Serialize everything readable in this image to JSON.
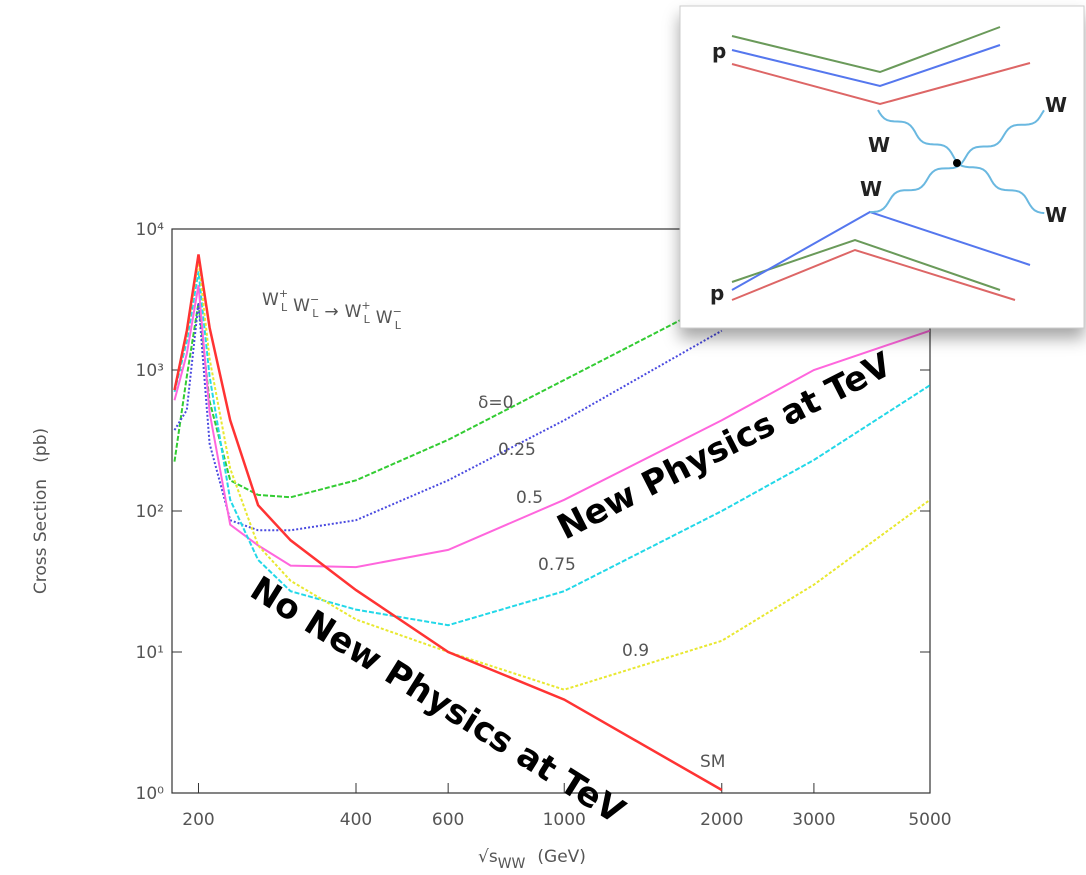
{
  "chart_data": {
    "type": "line",
    "process": [
      {
        "t": "W",
        "sup": "+",
        "sub": "L"
      },
      {
        "t": "W",
        "sup": "−",
        "sub": "L"
      },
      {
        "t": "→"
      },
      {
        "t": "W",
        "sup": "+",
        "sub": "L"
      },
      {
        "t": "W",
        "sup": "−",
        "sub": "L"
      }
    ],
    "ylabel": "Cross Section   (pb)",
    "xlabel": {
      "main": "√s",
      "sub": "WW",
      "unit": "(GeV)"
    },
    "log_x": true,
    "log_y": true,
    "xlim": [
      178,
      5000
    ],
    "ylim": [
      1,
      10000
    ],
    "xticks": [
      200,
      400,
      600,
      1000,
      2000,
      3000,
      5000
    ],
    "yticks": [
      {
        "value": 1,
        "label": "10⁰"
      },
      {
        "value": 10,
        "label": "10¹"
      },
      {
        "value": 100,
        "label": "10²"
      },
      {
        "value": 1000,
        "label": "10³"
      },
      {
        "value": 10000,
        "label": "10⁴"
      }
    ],
    "x": [
      180,
      190,
      200,
      210,
      230,
      260,
      300,
      400,
      600,
      1000,
      2000,
      3000,
      5000
    ],
    "series": [
      {
        "name": "δ=0",
        "color": "#33cc33",
        "dash": "5,2",
        "values": [
          224,
          900,
          3000,
          600,
          165,
          130,
          125,
          165,
          320,
          850,
          3200,
          null,
          null
        ]
      },
      {
        "name": "0.25",
        "color": "#4a4ae0",
        "dash": "2,2",
        "values": [
          375,
          520,
          3000,
          300,
          86,
          73,
          73,
          86,
          165,
          440,
          1900,
          null,
          null
        ]
      },
      {
        "name": "0.5",
        "color": "#ff66dd",
        "dash": "",
        "values": [
          610,
          1300,
          4000,
          500,
          80,
          57,
          41,
          40,
          53,
          120,
          440,
          1000,
          1900
        ]
      },
      {
        "name": "0.75",
        "color": "#22d8e8",
        "dash": "5,2",
        "values": [
          700,
          1600,
          5000,
          900,
          120,
          45,
          27,
          20,
          15.5,
          27,
          100,
          230,
          780
        ]
      },
      {
        "name": "0.9",
        "color": "#e8e830",
        "dash": "3,2",
        "values": [
          720,
          1800,
          6000,
          1200,
          200,
          57,
          32,
          17,
          10,
          5.4,
          12,
          30,
          120
        ]
      },
      {
        "name": "SM",
        "color": "#ff3333",
        "dash": "",
        "values": [
          720,
          1900,
          6600,
          2000,
          440,
          110,
          62,
          27.5,
          10,
          4.6,
          1.05,
          null,
          null
        ]
      }
    ],
    "annotations": [
      "New Physics at TeV",
      "No New Physics at TeV"
    ]
  },
  "diagram": {
    "labels": [
      "p",
      "p",
      "W",
      "W",
      "W",
      "W"
    ]
  }
}
